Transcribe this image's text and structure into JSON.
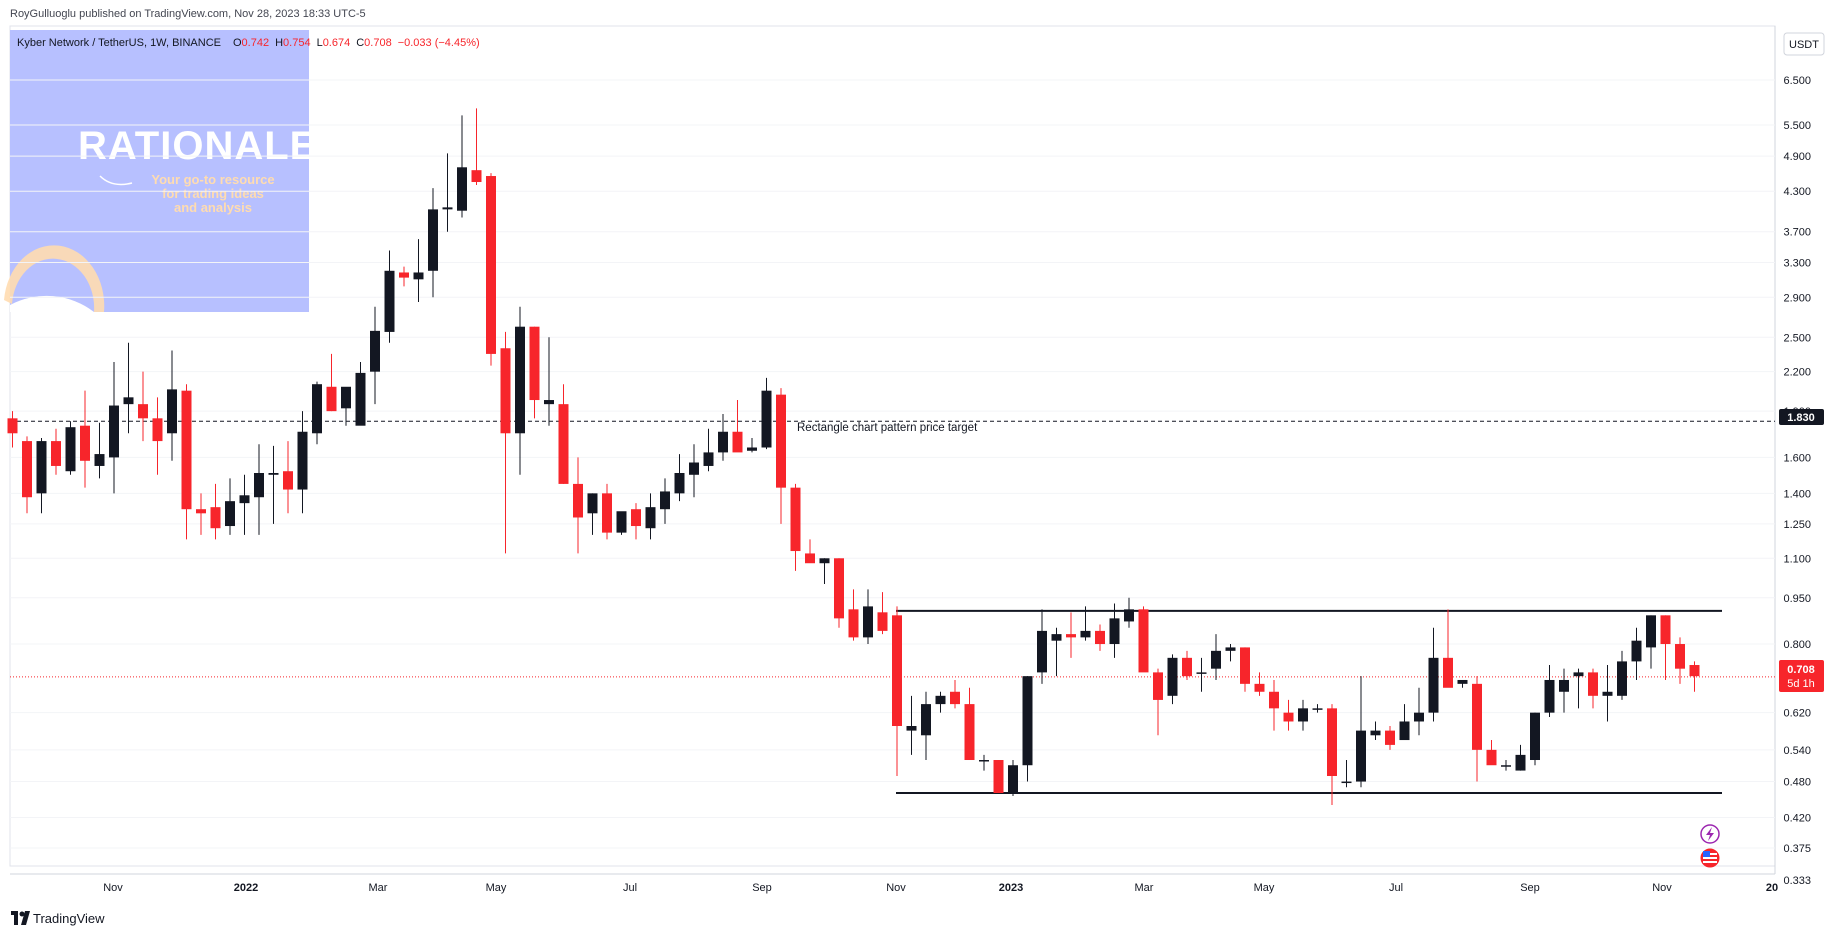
{
  "header": {
    "published": "RoyGulluoglu published on TradingView.com, Nov 28, 2023 18:33 UTC-5",
    "symbol_line": "Kyber Network / TetherUS, 1W, BINANCE",
    "ohlc": {
      "o_label": "O",
      "o": "0.742",
      "h_label": "H",
      "h": "0.754",
      "l_label": "L",
      "l": "0.674",
      "c_label": "C",
      "c": "0.708",
      "change": "−0.033 (−4.45%)"
    }
  },
  "currency_button": "USDT",
  "watermark": {
    "title": "RATIONALE",
    "tagline": [
      "Your go-to resource",
      "for trading ideas",
      "and analysis"
    ]
  },
  "annotation": {
    "text": "Rectangle chart pattern price target"
  },
  "price_labels": {
    "target": "1.830",
    "last": "0.708",
    "countdown": "5d 1h"
  },
  "footer": {
    "brand": "TradingView"
  },
  "colors": {
    "up": "#131722",
    "down": "#f7252b",
    "background": "#ffffff",
    "axis_text": "#131722",
    "watermark_bg": "#b7c0ff",
    "last_price": "#f7252b",
    "target_badge": "#131722"
  },
  "chart_data": {
    "type": "candlestick",
    "scale": "log",
    "y_ticks": [
      "6.500",
      "5.500",
      "4.900",
      "4.300",
      "3.700",
      "3.300",
      "2.900",
      "2.500",
      "2.200",
      "1.900",
      "1.600",
      "1.400",
      "1.250",
      "1.100",
      "0.950",
      "0.800",
      "0.620",
      "0.540",
      "0.480",
      "0.420",
      "0.375",
      "0.333"
    ],
    "x_ticks": [
      "Nov",
      "2022",
      "Mar",
      "May",
      "Jul",
      "Sep",
      "Nov",
      "2023",
      "Mar",
      "May",
      "Jul",
      "Sep",
      "Nov",
      "20"
    ],
    "hlines": [
      {
        "name": "target",
        "price": 1.83,
        "style": "dashed"
      },
      {
        "name": "rectangle-top",
        "price": 0.905,
        "style": "solid"
      },
      {
        "name": "rectangle-bottom",
        "price": 0.46,
        "style": "solid"
      }
    ],
    "last_price": 0.708,
    "candles": [
      [
        1.85,
        1.9,
        1.66,
        1.75
      ],
      [
        1.7,
        1.73,
        1.3,
        1.38
      ],
      [
        1.4,
        1.72,
        1.3,
        1.7
      ],
      [
        1.7,
        1.78,
        1.5,
        1.55
      ],
      [
        1.52,
        1.83,
        1.5,
        1.79
      ],
      [
        1.8,
        2.05,
        1.43,
        1.58
      ],
      [
        1.55,
        1.82,
        1.48,
        1.62
      ],
      [
        1.6,
        2.28,
        1.4,
        1.94
      ],
      [
        1.95,
        2.45,
        1.75,
        2.0
      ],
      [
        1.95,
        2.2,
        1.7,
        1.85
      ],
      [
        1.85,
        2.0,
        1.5,
        1.7
      ],
      [
        1.75,
        2.38,
        1.58,
        2.06
      ],
      [
        2.05,
        2.1,
        1.18,
        1.32
      ],
      [
        1.32,
        1.4,
        1.2,
        1.3
      ],
      [
        1.33,
        1.45,
        1.18,
        1.23
      ],
      [
        1.24,
        1.48,
        1.2,
        1.36
      ],
      [
        1.35,
        1.5,
        1.2,
        1.39
      ],
      [
        1.38,
        1.68,
        1.2,
        1.51
      ],
      [
        1.5,
        1.67,
        1.25,
        1.51
      ],
      [
        1.52,
        1.7,
        1.3,
        1.42
      ],
      [
        1.42,
        1.9,
        1.3,
        1.76
      ],
      [
        1.75,
        2.12,
        1.68,
        2.1
      ],
      [
        2.08,
        2.35,
        1.9,
        1.9
      ],
      [
        1.92,
        2.05,
        1.8,
        2.08
      ],
      [
        1.8,
        2.28,
        1.85,
        2.19
      ],
      [
        2.2,
        2.8,
        1.95,
        2.56
      ],
      [
        2.55,
        3.45,
        2.45,
        3.2
      ],
      [
        3.18,
        3.25,
        3.02,
        3.12
      ],
      [
        3.1,
        3.6,
        2.85,
        3.18
      ],
      [
        3.2,
        4.35,
        2.9,
        4.02
      ],
      [
        4.02,
        4.95,
        3.7,
        4.05
      ],
      [
        4.0,
        5.7,
        3.9,
        4.7
      ],
      [
        4.65,
        5.85,
        4.4,
        4.45
      ],
      [
        4.55,
        4.6,
        2.25,
        2.35
      ],
      [
        2.4,
        2.55,
        1.12,
        1.75
      ],
      [
        1.75,
        2.8,
        1.5,
        2.6
      ],
      [
        2.6,
        2.6,
        1.85,
        1.98
      ],
      [
        1.95,
        2.5,
        1.8,
        1.98
      ],
      [
        1.95,
        2.1,
        1.45,
        1.45
      ],
      [
        1.45,
        1.6,
        1.12,
        1.28
      ],
      [
        1.3,
        1.4,
        1.2,
        1.4
      ],
      [
        1.4,
        1.45,
        1.18,
        1.21
      ],
      [
        1.21,
        1.3,
        1.2,
        1.31
      ],
      [
        1.32,
        1.35,
        1.18,
        1.24
      ],
      [
        1.23,
        1.4,
        1.18,
        1.33
      ],
      [
        1.32,
        1.48,
        1.25,
        1.41
      ],
      [
        1.4,
        1.62,
        1.36,
        1.51
      ],
      [
        1.5,
        1.68,
        1.38,
        1.57
      ],
      [
        1.55,
        1.78,
        1.52,
        1.63
      ],
      [
        1.63,
        1.88,
        1.58,
        1.76
      ],
      [
        1.76,
        1.98,
        1.66,
        1.63
      ],
      [
        1.64,
        1.72,
        1.63,
        1.66
      ],
      [
        1.66,
        2.15,
        1.65,
        2.05
      ],
      [
        2.02,
        2.07,
        1.25,
        1.43
      ],
      [
        1.43,
        1.45,
        1.05,
        1.13
      ],
      [
        1.12,
        1.18,
        1.1,
        1.08
      ],
      [
        1.08,
        1.1,
        1.0,
        1.1
      ],
      [
        1.1,
        1.1,
        0.85,
        0.88
      ],
      [
        0.91,
        0.98,
        0.81,
        0.82
      ],
      [
        0.82,
        0.98,
        0.8,
        0.92
      ],
      [
        0.9,
        0.97,
        0.83,
        0.84
      ],
      [
        0.89,
        0.92,
        0.49,
        0.59
      ],
      [
        0.58,
        0.66,
        0.53,
        0.59
      ],
      [
        0.57,
        0.67,
        0.52,
        0.64
      ],
      [
        0.64,
        0.67,
        0.62,
        0.66
      ],
      [
        0.67,
        0.7,
        0.63,
        0.64
      ],
      [
        0.64,
        0.68,
        0.52,
        0.52
      ],
      [
        0.52,
        0.53,
        0.5,
        0.52
      ],
      [
        0.52,
        0.52,
        0.46,
        0.46
      ],
      [
        0.46,
        0.52,
        0.455,
        0.51
      ],
      [
        0.51,
        0.71,
        0.48,
        0.71
      ],
      [
        0.72,
        0.91,
        0.69,
        0.84
      ],
      [
        0.81,
        0.85,
        0.71,
        0.83
      ],
      [
        0.83,
        0.9,
        0.76,
        0.82
      ],
      [
        0.82,
        0.92,
        0.81,
        0.84
      ],
      [
        0.84,
        0.86,
        0.78,
        0.8
      ],
      [
        0.8,
        0.93,
        0.76,
        0.88
      ],
      [
        0.87,
        0.95,
        0.85,
        0.91
      ],
      [
        0.91,
        0.92,
        0.73,
        0.72
      ],
      [
        0.72,
        0.73,
        0.57,
        0.65
      ],
      [
        0.66,
        0.77,
        0.64,
        0.76
      ],
      [
        0.76,
        0.78,
        0.7,
        0.71
      ],
      [
        0.72,
        0.76,
        0.67,
        0.72
      ],
      [
        0.73,
        0.83,
        0.7,
        0.78
      ],
      [
        0.78,
        0.8,
        0.75,
        0.79
      ],
      [
        0.79,
        0.79,
        0.67,
        0.69
      ],
      [
        0.69,
        0.72,
        0.66,
        0.67
      ],
      [
        0.67,
        0.7,
        0.58,
        0.63
      ],
      [
        0.62,
        0.65,
        0.58,
        0.6
      ],
      [
        0.6,
        0.65,
        0.58,
        0.63
      ],
      [
        0.63,
        0.64,
        0.62,
        0.63
      ],
      [
        0.63,
        0.64,
        0.44,
        0.49
      ],
      [
        0.48,
        0.52,
        0.47,
        0.48
      ],
      [
        0.48,
        0.71,
        0.47,
        0.58
      ],
      [
        0.57,
        0.6,
        0.56,
        0.58
      ],
      [
        0.58,
        0.59,
        0.54,
        0.55
      ],
      [
        0.56,
        0.64,
        0.56,
        0.6
      ],
      [
        0.6,
        0.68,
        0.57,
        0.62
      ],
      [
        0.62,
        0.85,
        0.6,
        0.76
      ],
      [
        0.76,
        0.91,
        0.7,
        0.68
      ],
      [
        0.69,
        0.7,
        0.68,
        0.7
      ],
      [
        0.69,
        0.71,
        0.48,
        0.54
      ],
      [
        0.54,
        0.56,
        0.52,
        0.51
      ],
      [
        0.51,
        0.52,
        0.5,
        0.51
      ],
      [
        0.5,
        0.55,
        0.5,
        0.53
      ],
      [
        0.52,
        0.62,
        0.51,
        0.62
      ],
      [
        0.62,
        0.74,
        0.61,
        0.7
      ],
      [
        0.67,
        0.73,
        0.62,
        0.7
      ],
      [
        0.71,
        0.73,
        0.63,
        0.72
      ],
      [
        0.72,
        0.73,
        0.63,
        0.66
      ],
      [
        0.66,
        0.74,
        0.6,
        0.67
      ],
      [
        0.66,
        0.78,
        0.65,
        0.75
      ],
      [
        0.75,
        0.85,
        0.7,
        0.81
      ],
      [
        0.79,
        0.89,
        0.73,
        0.89
      ],
      [
        0.89,
        0.89,
        0.7,
        0.8
      ],
      [
        0.8,
        0.82,
        0.69,
        0.73
      ],
      [
        0.74,
        0.75,
        0.67,
        0.71
      ]
    ]
  }
}
